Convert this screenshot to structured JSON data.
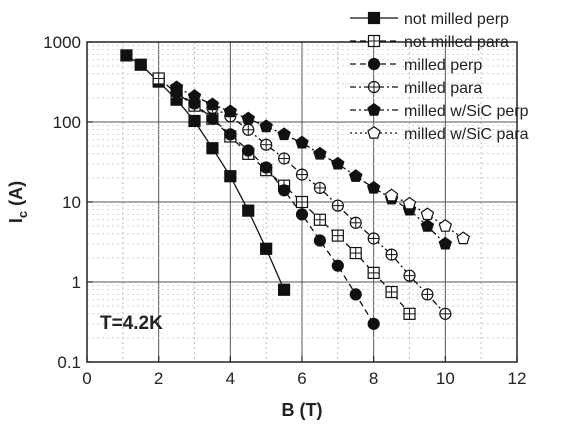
{
  "chart_data": {
    "type": "scatter",
    "title": "",
    "xlabel": "B (T)",
    "ylabel_main": "I",
    "ylabel_sub": "c",
    "ylabel_unit": " (A)",
    "xlim": [
      0,
      12
    ],
    "ylim": [
      0.1,
      1000
    ],
    "y_scale": "log",
    "x_ticks": [
      0,
      2,
      4,
      6,
      8,
      10,
      12
    ],
    "x_tick_labels": [
      "0",
      "2",
      "4",
      "6",
      "8",
      "10",
      "12"
    ],
    "y_ticks": [
      0.1,
      1,
      10,
      100,
      1000
    ],
    "y_tick_labels": [
      "0.1",
      "1",
      "10",
      "100",
      "1000"
    ],
    "grid": true,
    "legend_position": "top-right",
    "annotation": "T=4.2K",
    "series": [
      {
        "name": "not milled perp",
        "marker": "square",
        "fill": "filled",
        "dash": "solid",
        "x": [
          1.1,
          1.5,
          2.0,
          2.5,
          3.0,
          3.5,
          4.0,
          4.5,
          5.0,
          5.5
        ],
        "y": [
          680,
          520,
          320,
          190,
          103,
          47,
          21,
          7.8,
          2.6,
          0.8
        ]
      },
      {
        "name": "not milled para",
        "marker": "square",
        "fill": "open",
        "dash": "dash",
        "x": [
          2.0,
          2.5,
          3.0,
          3.5,
          4.0,
          4.5,
          5.0,
          5.5,
          6.0,
          6.5,
          7.0,
          7.5,
          8.0,
          8.5,
          9.0
        ],
        "y": [
          350,
          230,
          160,
          110,
          66,
          40,
          25,
          16,
          10,
          6,
          3.8,
          2.3,
          1.3,
          0.75,
          0.4
        ]
      },
      {
        "name": "milled perp",
        "marker": "circle",
        "fill": "filled",
        "dash": "dash",
        "x": [
          2.5,
          3.0,
          3.5,
          4.0,
          4.5,
          5.0,
          5.5,
          6.0,
          6.5,
          7.0,
          7.5,
          8.0
        ],
        "y": [
          230,
          170,
          110,
          70,
          44,
          27,
          14,
          7,
          3.3,
          1.6,
          0.7,
          0.3
        ]
      },
      {
        "name": "milled para",
        "marker": "circle",
        "fill": "open",
        "dash": "dashdot",
        "x": [
          3.5,
          4.0,
          4.5,
          5.0,
          5.5,
          6.0,
          6.5,
          7.0,
          7.5,
          8.0,
          8.5,
          9.0,
          9.5,
          10.0
        ],
        "y": [
          150,
          118,
          80,
          52,
          35,
          22,
          15,
          9,
          5.5,
          3.5,
          2.2,
          1.2,
          0.7,
          0.4
        ]
      },
      {
        "name": "milled w/SiC perp",
        "marker": "pentagon",
        "fill": "filled",
        "dash": "dashdot",
        "x": [
          2.5,
          3.0,
          3.5,
          4.0,
          4.5,
          5.0,
          5.5,
          6.0,
          6.5,
          7.0,
          7.5,
          8.0,
          8.5,
          9.0,
          9.5,
          10.0
        ],
        "y": [
          270,
          210,
          165,
          135,
          110,
          88,
          70,
          55,
          40,
          30,
          21,
          15,
          11,
          8,
          5,
          3
        ]
      },
      {
        "name": "milled w/SiC para",
        "marker": "pentagon",
        "fill": "open",
        "dash": "dot",
        "x": [
          8.5,
          9.0,
          9.5,
          10.0,
          10.5
        ],
        "y": [
          12,
          9.5,
          7,
          5,
          3.5
        ]
      }
    ]
  }
}
